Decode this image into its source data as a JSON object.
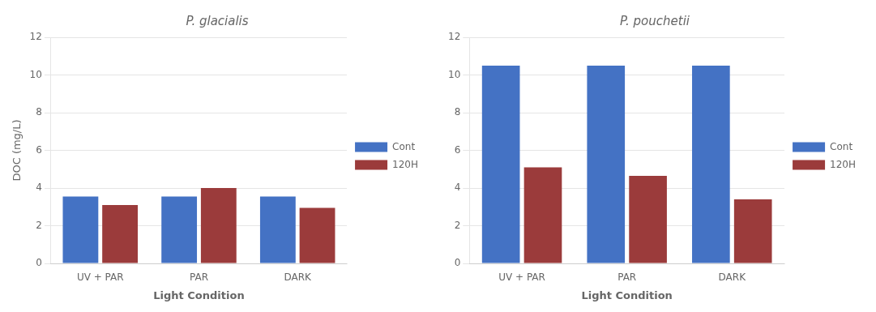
{
  "chart_data": [
    {
      "type": "bar",
      "title": "P. glacialis",
      "categories": [
        "UV + PAR",
        "PAR",
        "DARK"
      ],
      "series": [
        {
          "name": "Cont",
          "color": "#4472C4",
          "values": [
            3.55,
            3.55,
            3.55
          ]
        },
        {
          "name": "120H",
          "color": "#9B3B3B",
          "values": [
            3.1,
            4.0,
            2.95
          ]
        }
      ],
      "xlabel": "Light Condition",
      "ylabel": "DOC (mg/L)",
      "ylim": [
        0,
        12
      ],
      "yticks": [
        0,
        2,
        4,
        6,
        8,
        10,
        12
      ],
      "grid": true,
      "legend": "right"
    },
    {
      "type": "bar",
      "title": "P. pouchetii",
      "categories": [
        "UV + PAR",
        "PAR",
        "DARK"
      ],
      "series": [
        {
          "name": "Cont",
          "color": "#4472C4",
          "values": [
            10.5,
            10.5,
            10.5
          ]
        },
        {
          "name": "120H",
          "color": "#9B3B3B",
          "values": [
            5.1,
            4.65,
            3.4
          ]
        }
      ],
      "xlabel": "Light Condition",
      "ylim": [
        0,
        12
      ],
      "yticks": [
        0,
        2,
        4,
        6,
        8,
        10,
        12
      ],
      "grid": true,
      "legend": "right"
    }
  ]
}
